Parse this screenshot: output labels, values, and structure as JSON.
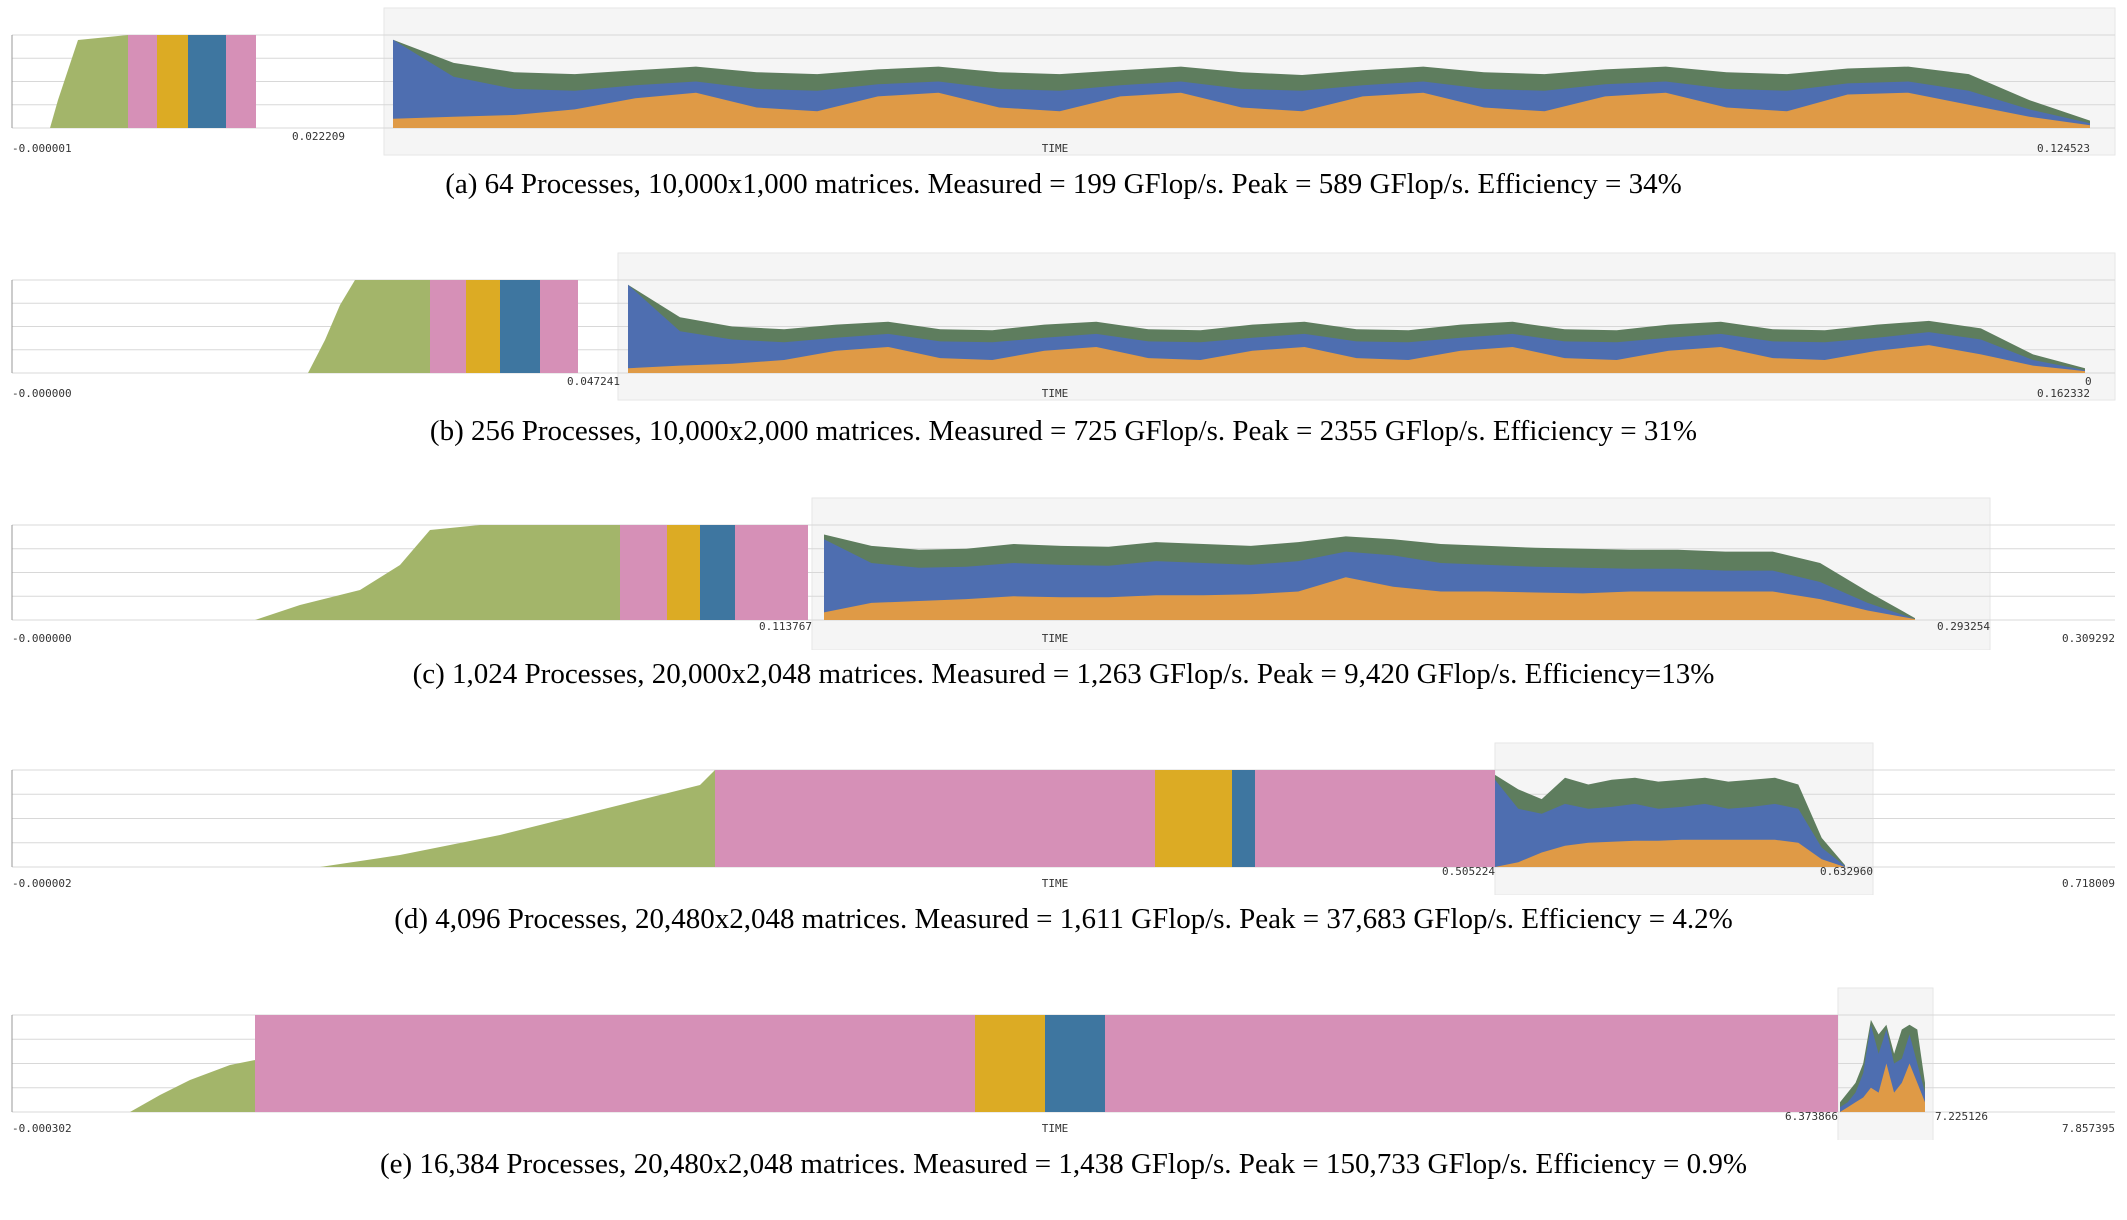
{
  "colors": {
    "green_ramp": "#a3b56a",
    "pink": "#d690b7",
    "yellow": "#dcab24",
    "blue": "#3e76a0",
    "trace_green": "#5e7d5e",
    "trace_blue": "#4e6eb0",
    "trace_orange": "#df9a46",
    "zoom_bg": "#f5f5f5",
    "grid": "#d8d8d8"
  },
  "chart_data": [
    {
      "type": "area",
      "id": "a",
      "caption": "(a)  64 Processes, 10,000x1,000 matrices. Measured = 199 GFlop/s. Peak = 589 GFlop/s. Efficiency = 34%",
      "xlabel": "TIME",
      "tick_labels": {
        "start": "-0.000001",
        "split": "0.022209",
        "end": "0.124523"
      },
      "phases": [
        "ramp",
        "pink",
        "yellow",
        "blue",
        "pink"
      ],
      "trace_series": [
        "green",
        "blue",
        "orange"
      ],
      "trace": {
        "total": [
          0.95,
          0.7,
          0.6,
          0.58,
          0.62,
          0.66,
          0.6,
          0.58,
          0.63,
          0.66,
          0.6,
          0.58,
          0.62,
          0.66,
          0.6,
          0.57,
          0.62,
          0.66,
          0.6,
          0.58,
          0.63,
          0.66,
          0.6,
          0.58,
          0.64,
          0.66,
          0.58,
          0.3,
          0.08
        ],
        "blue": [
          0.95,
          0.55,
          0.42,
          0.4,
          0.46,
          0.5,
          0.42,
          0.4,
          0.47,
          0.5,
          0.42,
          0.4,
          0.46,
          0.5,
          0.42,
          0.4,
          0.46,
          0.5,
          0.42,
          0.4,
          0.47,
          0.5,
          0.42,
          0.4,
          0.48,
          0.5,
          0.4,
          0.2,
          0.05
        ],
        "orange": [
          0.1,
          0.12,
          0.14,
          0.2,
          0.32,
          0.38,
          0.22,
          0.18,
          0.34,
          0.38,
          0.22,
          0.18,
          0.34,
          0.38,
          0.22,
          0.18,
          0.34,
          0.38,
          0.22,
          0.18,
          0.34,
          0.38,
          0.22,
          0.18,
          0.36,
          0.38,
          0.25,
          0.12,
          0.03
        ]
      }
    },
    {
      "type": "area",
      "id": "b",
      "caption": "(b)  256 Processes, 10,000x2,000 matrices. Measured = 725 GFlop/s. Peak = 2355 GFlop/s. Efficiency = 31%",
      "xlabel": "TIME",
      "tick_labels": {
        "start": "-0.000000",
        "split": "0.047241",
        "end": "0.162332",
        "tail": "0"
      },
      "phases": [
        "ramp",
        "pink",
        "yellow",
        "blue",
        "pink"
      ],
      "trace_series": [
        "green",
        "blue",
        "orange"
      ],
      "trace": {
        "total": [
          0.95,
          0.6,
          0.5,
          0.47,
          0.52,
          0.55,
          0.47,
          0.46,
          0.52,
          0.55,
          0.47,
          0.46,
          0.52,
          0.55,
          0.47,
          0.46,
          0.52,
          0.55,
          0.47,
          0.46,
          0.52,
          0.55,
          0.47,
          0.46,
          0.52,
          0.56,
          0.48,
          0.2,
          0.05
        ],
        "blue": [
          0.95,
          0.45,
          0.36,
          0.33,
          0.38,
          0.42,
          0.34,
          0.33,
          0.38,
          0.42,
          0.34,
          0.33,
          0.38,
          0.42,
          0.34,
          0.33,
          0.38,
          0.42,
          0.34,
          0.33,
          0.38,
          0.42,
          0.34,
          0.33,
          0.38,
          0.44,
          0.36,
          0.14,
          0.03
        ],
        "orange": [
          0.05,
          0.08,
          0.1,
          0.14,
          0.24,
          0.28,
          0.16,
          0.14,
          0.24,
          0.28,
          0.16,
          0.14,
          0.24,
          0.28,
          0.16,
          0.14,
          0.24,
          0.28,
          0.16,
          0.14,
          0.24,
          0.28,
          0.16,
          0.14,
          0.24,
          0.3,
          0.2,
          0.08,
          0.02
        ]
      }
    },
    {
      "type": "area",
      "id": "c",
      "caption": "(c)  1,024 Processes, 20,000x2,048 matrices. Measured = 1,263 GFlop/s. Peak = 9,420 GFlop/s. Efficiency=13%",
      "xlabel": "TIME",
      "tick_labels": {
        "start": "-0.000000",
        "split": "0.113767",
        "split_end": "0.293254",
        "end": "0.309292"
      },
      "phases": [
        "ramp",
        "pink",
        "yellow",
        "blue",
        "pink"
      ],
      "trace_series": [
        "green",
        "blue",
        "orange"
      ],
      "trace": {
        "total": [
          0.9,
          0.78,
          0.74,
          0.75,
          0.8,
          0.78,
          0.77,
          0.82,
          0.8,
          0.78,
          0.82,
          0.88,
          0.85,
          0.8,
          0.78,
          0.76,
          0.75,
          0.74,
          0.74,
          0.72,
          0.72,
          0.6,
          0.3,
          0.02
        ],
        "blue": [
          0.85,
          0.6,
          0.55,
          0.56,
          0.6,
          0.58,
          0.57,
          0.62,
          0.6,
          0.58,
          0.62,
          0.72,
          0.68,
          0.6,
          0.58,
          0.56,
          0.55,
          0.54,
          0.54,
          0.52,
          0.52,
          0.4,
          0.18,
          0.01
        ],
        "orange": [
          0.08,
          0.18,
          0.2,
          0.22,
          0.25,
          0.24,
          0.24,
          0.26,
          0.26,
          0.27,
          0.3,
          0.45,
          0.35,
          0.3,
          0.3,
          0.29,
          0.28,
          0.3,
          0.3,
          0.3,
          0.3,
          0.22,
          0.1,
          0.01
        ]
      }
    },
    {
      "type": "area",
      "id": "d",
      "caption": "(d)  4,096 Processes, 20,480x2,048 matrices. Measured = 1,611 GFlop/s. Peak = 37,683 GFlop/s. Efficiency = 4.2%",
      "xlabel": "TIME",
      "tick_labels": {
        "start": "-0.000002",
        "split": "0.505224",
        "split_end": "0.632960",
        "end": "0.718009"
      },
      "phases": [
        "ramp",
        "pink",
        "yellow",
        "blue",
        "pink"
      ],
      "trace_series": [
        "green",
        "blue",
        "orange"
      ],
      "trace": {
        "total": [
          0.95,
          0.8,
          0.7,
          0.92,
          0.85,
          0.9,
          0.92,
          0.88,
          0.9,
          0.92,
          0.88,
          0.9,
          0.92,
          0.85,
          0.3,
          0.02
        ],
        "blue": [
          0.9,
          0.6,
          0.55,
          0.65,
          0.6,
          0.62,
          0.65,
          0.6,
          0.62,
          0.65,
          0.6,
          0.62,
          0.65,
          0.6,
          0.2,
          0.01
        ],
        "orange": [
          0.0,
          0.05,
          0.15,
          0.22,
          0.25,
          0.26,
          0.27,
          0.27,
          0.28,
          0.28,
          0.28,
          0.28,
          0.28,
          0.25,
          0.08,
          0.0
        ]
      }
    },
    {
      "type": "area",
      "id": "e",
      "caption": "(e)  16,384 Processes, 20,480x2,048 matrices. Measured = 1,438 GFlop/s. Peak = 150,733 GFlop/s. Efficiency = 0.9%",
      "xlabel": "TIME",
      "tick_labels": {
        "start": "-0.000302",
        "split": "6.373866",
        "split_end": "7.225126",
        "end": "7.857395"
      },
      "phases": [
        "ramp",
        "pink",
        "yellow",
        "blue",
        "pink"
      ],
      "trace_series": [
        "green",
        "blue",
        "orange"
      ],
      "trace": {
        "total": [
          0.1,
          0.2,
          0.3,
          0.5,
          0.95,
          0.8,
          0.9,
          0.6,
          0.85,
          0.9,
          0.85,
          0.3
        ],
        "blue": [
          0.05,
          0.1,
          0.2,
          0.4,
          0.9,
          0.6,
          0.85,
          0.5,
          0.55,
          0.8,
          0.5,
          0.2
        ],
        "orange": [
          0.0,
          0.05,
          0.1,
          0.15,
          0.25,
          0.2,
          0.5,
          0.2,
          0.3,
          0.5,
          0.3,
          0.1
        ]
      }
    }
  ]
}
